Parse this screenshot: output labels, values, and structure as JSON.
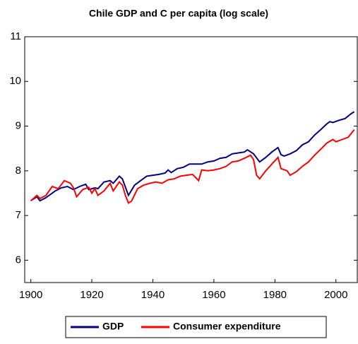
{
  "chart_data": {
    "type": "line",
    "title": "Chile  GDP and C per capita (log scale)",
    "xlim": [
      1898,
      2007
    ],
    "xticks": [
      1900,
      1920,
      1940,
      1960,
      1980,
      2000
    ],
    "ylim": [
      5.5,
      11
    ],
    "yticks": [
      6,
      7,
      8,
      9,
      10,
      11
    ],
    "grid": false,
    "legend": "bottom",
    "series": [
      {
        "name": "GDP",
        "color": "#000080",
        "x": [
          1900,
          1902,
          1903,
          1905,
          1908,
          1910,
          1912,
          1914,
          1916,
          1918,
          1919,
          1921,
          1922,
          1924,
          1926,
          1927,
          1929,
          1930,
          1932,
          1934,
          1936,
          1938,
          1940,
          1942,
          1944,
          1945,
          1946,
          1948,
          1950,
          1952,
          1954,
          1956,
          1958,
          1960,
          1962,
          1964,
          1966,
          1968,
          1970,
          1971,
          1973,
          1975,
          1977,
          1979,
          1981,
          1982,
          1983,
          1985,
          1987,
          1989,
          1991,
          1993,
          1995,
          1997,
          1998,
          1999,
          2001,
          2003,
          2005,
          2006
        ],
        "values": [
          7.33,
          7.42,
          7.33,
          7.4,
          7.55,
          7.62,
          7.65,
          7.58,
          7.65,
          7.7,
          7.58,
          7.62,
          7.6,
          7.75,
          7.78,
          7.72,
          7.88,
          7.82,
          7.45,
          7.68,
          7.78,
          7.88,
          7.9,
          7.92,
          7.95,
          8.02,
          7.96,
          8.05,
          8.08,
          8.15,
          8.15,
          8.15,
          8.2,
          8.22,
          8.28,
          8.3,
          8.38,
          8.4,
          8.42,
          8.47,
          8.38,
          8.2,
          8.3,
          8.42,
          8.52,
          8.36,
          8.33,
          8.38,
          8.45,
          8.58,
          8.65,
          8.8,
          8.92,
          9.05,
          9.1,
          9.08,
          9.13,
          9.17,
          9.28,
          9.32
        ]
      },
      {
        "name": "Consumer expenditure",
        "color": "#ff0000",
        "x": [
          1900,
          1902,
          1903,
          1905,
          1907,
          1909,
          1911,
          1913,
          1914,
          1915,
          1917,
          1919,
          1920,
          1921,
          1922,
          1924,
          1926,
          1927,
          1929,
          1930,
          1931,
          1932,
          1933,
          1935,
          1937,
          1939,
          1941,
          1943,
          1945,
          1947,
          1949,
          1951,
          1953,
          1954,
          1955,
          1956,
          1958,
          1960,
          1962,
          1964,
          1966,
          1968,
          1970,
          1972,
          1973,
          1974,
          1975,
          1977,
          1979,
          1981,
          1982,
          1984,
          1985,
          1987,
          1989,
          1991,
          1993,
          1995,
          1997,
          1999,
          2000,
          2002,
          2004,
          2006
        ],
        "values": [
          7.33,
          7.45,
          7.38,
          7.45,
          7.65,
          7.6,
          7.78,
          7.72,
          7.62,
          7.42,
          7.58,
          7.63,
          7.5,
          7.6,
          7.45,
          7.55,
          7.72,
          7.55,
          7.75,
          7.68,
          7.45,
          7.28,
          7.32,
          7.6,
          7.68,
          7.72,
          7.75,
          7.72,
          7.8,
          7.82,
          7.88,
          7.9,
          7.92,
          7.85,
          7.78,
          8.02,
          8.0,
          8.02,
          8.05,
          8.1,
          8.2,
          8.22,
          8.28,
          8.35,
          8.25,
          7.9,
          7.82,
          8.0,
          8.15,
          8.3,
          8.05,
          8.0,
          7.9,
          7.98,
          8.1,
          8.2,
          8.35,
          8.48,
          8.62,
          8.7,
          8.65,
          8.7,
          8.75,
          8.92
        ]
      }
    ]
  }
}
